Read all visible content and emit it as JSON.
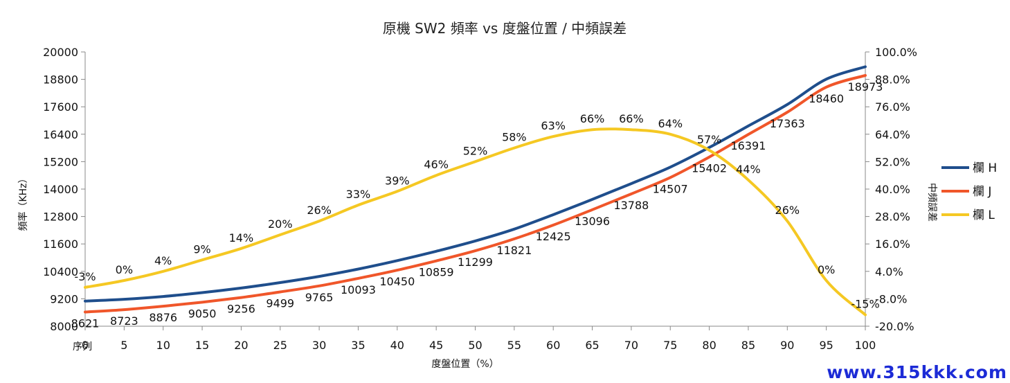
{
  "chart_data": {
    "type": "line",
    "title": "原機 SW2 頻率 vs 度盤位置 / 中頻誤差",
    "xlabel": "度盤位置（%）",
    "x_row_label": "序列",
    "ylabel_left": "頻率（KHz）",
    "ylabel_right": "中頻誤差",
    "x": [
      0,
      5,
      10,
      15,
      20,
      25,
      30,
      35,
      40,
      45,
      50,
      55,
      60,
      65,
      70,
      75,
      80,
      85,
      90,
      95,
      100
    ],
    "xlim": [
      0,
      100
    ],
    "ylim_left": [
      8000,
      20000
    ],
    "yticks_left": [
      "8000",
      "9200",
      "10400",
      "11600",
      "12800",
      "14000",
      "15200",
      "16400",
      "17600",
      "18800",
      "20000"
    ],
    "ylim_right": [
      -20,
      100
    ],
    "yticks_right": [
      "-20.0%",
      "-8.0%",
      "4.0%",
      "16.0%",
      "28.0%",
      "40.0%",
      "52.0%",
      "64.0%",
      "76.0%",
      "88.0%",
      "100.0%"
    ],
    "grid": false,
    "legend_position": "right",
    "series": [
      {
        "name": "欄 H",
        "axis": "left",
        "color": "#1f4e8c",
        "labeled": false,
        "values": [
          9100,
          9180,
          9300,
          9470,
          9670,
          9910,
          10180,
          10500,
          10870,
          11280,
          11730,
          12250,
          12880,
          13550,
          14240,
          14960,
          15820,
          16760,
          17700,
          18810,
          19350
        ]
      },
      {
        "name": "欄 J",
        "axis": "left",
        "color": "#f0562a",
        "labeled": true,
        "values": [
          8621,
          8723,
          8876,
          9050,
          9256,
          9499,
          9765,
          10093,
          10450,
          10859,
          11299,
          11821,
          12425,
          13096,
          13788,
          14507,
          15402,
          16391,
          17363,
          18460,
          18973
        ],
        "labels": [
          "8621",
          "8723",
          "8876",
          "9050",
          "9256",
          "9499",
          "9765",
          "10093",
          "10450",
          "10859",
          "11299",
          "11821",
          "12425",
          "13096",
          "13788",
          "14507",
          "15402",
          "16391",
          "17363",
          "18460",
          "18973"
        ]
      },
      {
        "name": "欄 L",
        "axis": "right",
        "color": "#f5c823",
        "labeled": true,
        "values": [
          -3,
          0,
          4,
          9,
          14,
          20,
          26,
          33,
          39,
          46,
          52,
          58,
          63,
          66,
          66,
          64,
          57,
          44,
          26,
          0,
          -15
        ],
        "labels": [
          "-3%",
          "0%",
          "4%",
          "9%",
          "14%",
          "20%",
          "26%",
          "33%",
          "39%",
          "46%",
          "52%",
          "58%",
          "63%",
          "66%",
          "66%",
          "64%",
          "57%",
          "44%",
          "26%",
          "0%",
          "-15%"
        ]
      }
    ]
  },
  "watermark": {
    "text": "www.315kkk.com"
  }
}
